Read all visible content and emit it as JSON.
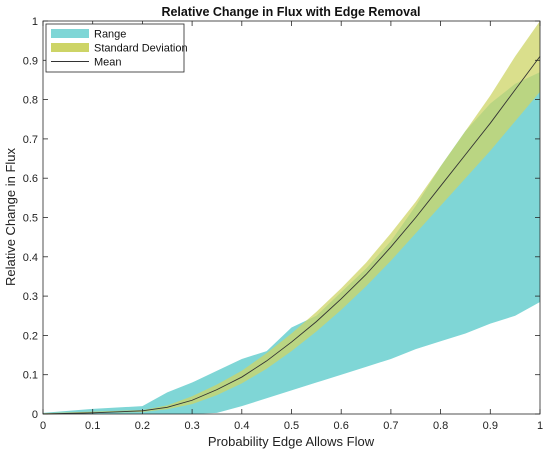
{
  "chart_data": {
    "type": "area",
    "title": "Relative Change in Flux with Edge Removal",
    "xlabel": "Probability Edge Allows Flow",
    "ylabel": "Relative Change in Flux",
    "xlim": [
      0,
      1
    ],
    "ylim": [
      0,
      1
    ],
    "x_ticks": [
      "0",
      "0.1",
      "0.2",
      "0.3",
      "0.4",
      "0.5",
      "0.6",
      "0.7",
      "0.8",
      "0.9",
      "1"
    ],
    "y_ticks": [
      "0",
      "0.1",
      "0.2",
      "0.3",
      "0.4",
      "0.5",
      "0.6",
      "0.7",
      "0.8",
      "0.9",
      "1"
    ],
    "grid": false,
    "legend_position": "top-left",
    "x": [
      0,
      0.1,
      0.2,
      0.25,
      0.3,
      0.35,
      0.4,
      0.45,
      0.5,
      0.55,
      0.6,
      0.65,
      0.7,
      0.75,
      0.8,
      0.85,
      0.9,
      0.95,
      1.0
    ],
    "series": [
      {
        "name": "Range",
        "color": "#7fd6d6",
        "lower": [
          0,
          0,
          0,
          0,
          0,
          0.003,
          0.02,
          0.04,
          0.06,
          0.08,
          0.1,
          0.12,
          0.14,
          0.165,
          0.185,
          0.205,
          0.23,
          0.25,
          0.285
        ],
        "upper": [
          0.003,
          0.013,
          0.02,
          0.055,
          0.08,
          0.11,
          0.14,
          0.16,
          0.22,
          0.25,
          0.31,
          0.37,
          0.44,
          0.53,
          0.63,
          0.72,
          0.79,
          0.84,
          0.87
        ]
      },
      {
        "name": "Standard Deviation",
        "color": "#cdd466",
        "lower": [
          0,
          0.003,
          0.005,
          0.012,
          0.025,
          0.048,
          0.078,
          0.115,
          0.16,
          0.21,
          0.265,
          0.325,
          0.39,
          0.46,
          0.53,
          0.6,
          0.67,
          0.745,
          0.82
        ],
        "upper": [
          0.002,
          0.006,
          0.01,
          0.022,
          0.045,
          0.075,
          0.11,
          0.155,
          0.205,
          0.26,
          0.32,
          0.385,
          0.46,
          0.54,
          0.63,
          0.72,
          0.81,
          0.91,
          1.0
        ]
      },
      {
        "name": "Mean",
        "color": "#333333",
        "values": [
          0,
          0.003,
          0.008,
          0.017,
          0.035,
          0.062,
          0.094,
          0.135,
          0.183,
          0.235,
          0.293,
          0.355,
          0.425,
          0.5,
          0.58,
          0.66,
          0.74,
          0.825,
          0.91
        ]
      }
    ]
  }
}
